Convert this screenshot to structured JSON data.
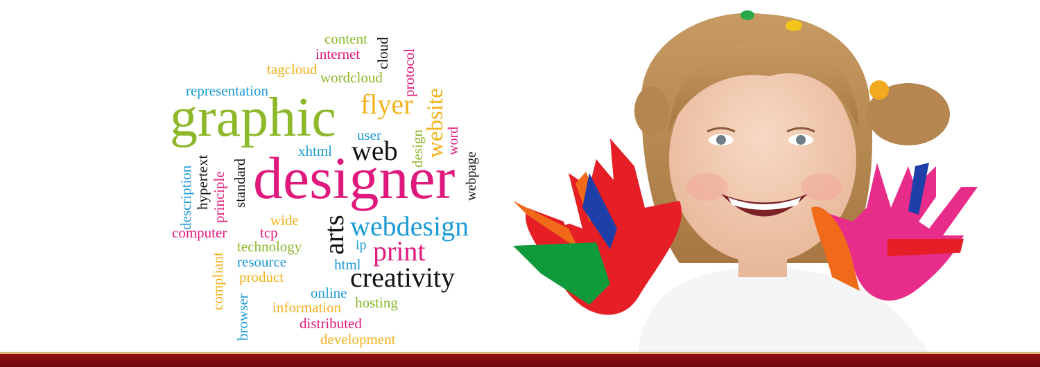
{
  "word_cloud": {
    "words": [
      {
        "text": "content",
        "color": "#8cb82a"
      },
      {
        "text": "cloud",
        "color": "#111111"
      },
      {
        "text": "internet",
        "color": "#e0197d"
      },
      {
        "text": "protocol",
        "color": "#e0197d"
      },
      {
        "text": "tagcloud",
        "color": "#f2b21c"
      },
      {
        "text": "wordcloud",
        "color": "#8cb82a"
      },
      {
        "text": "website",
        "color": "#f2b21c"
      },
      {
        "text": "representation",
        "color": "#1c9ad6"
      },
      {
        "text": "graphic",
        "color": "#8cb82a"
      },
      {
        "text": "flyer",
        "color": "#f2b21c"
      },
      {
        "text": "user",
        "color": "#1c9ad6"
      },
      {
        "text": "design",
        "color": "#8cb82a"
      },
      {
        "text": "word",
        "color": "#e0197d"
      },
      {
        "text": "xhtml",
        "color": "#1c9ad6"
      },
      {
        "text": "web",
        "color": "#111111"
      },
      {
        "text": "webpage",
        "color": "#111111"
      },
      {
        "text": "description",
        "color": "#1c9ad6"
      },
      {
        "text": "hypertext",
        "color": "#111111"
      },
      {
        "text": "principle",
        "color": "#e0197d"
      },
      {
        "text": "standard",
        "color": "#111111"
      },
      {
        "text": "designer",
        "color": "#e0197d"
      },
      {
        "text": "wide",
        "color": "#f2b21c"
      },
      {
        "text": "computer",
        "color": "#e0197d"
      },
      {
        "text": "tcp",
        "color": "#e0197d"
      },
      {
        "text": "arts",
        "color": "#111111"
      },
      {
        "text": "webdesign",
        "color": "#1c9ad6"
      },
      {
        "text": "technology",
        "color": "#8cb82a"
      },
      {
        "text": "ip",
        "color": "#1c9ad6"
      },
      {
        "text": "compliant",
        "color": "#f2b21c"
      },
      {
        "text": "resource",
        "color": "#1c9ad6"
      },
      {
        "text": "print",
        "color": "#e0197d"
      },
      {
        "text": "html",
        "color": "#1c9ad6"
      },
      {
        "text": "product",
        "color": "#f2b21c"
      },
      {
        "text": "creativity",
        "color": "#111111"
      },
      {
        "text": "browser",
        "color": "#1c9ad6"
      },
      {
        "text": "online",
        "color": "#1c9ad6"
      },
      {
        "text": "information",
        "color": "#f2b21c"
      },
      {
        "text": "hosting",
        "color": "#8cb82a"
      },
      {
        "text": "distributed",
        "color": "#e0197d"
      },
      {
        "text": "development",
        "color": "#f2b21c"
      }
    ]
  },
  "photo": {
    "subject": "smiling girl with paint-covered hands",
    "paint_colors": [
      "#f06a1a",
      "#0f9a3c",
      "#e61e25",
      "#1f3fa8",
      "#e72c8a",
      "#ffffff"
    ]
  },
  "footer": {
    "bar_color": "#7e0a0f",
    "accent_color": "#d8b07a"
  }
}
